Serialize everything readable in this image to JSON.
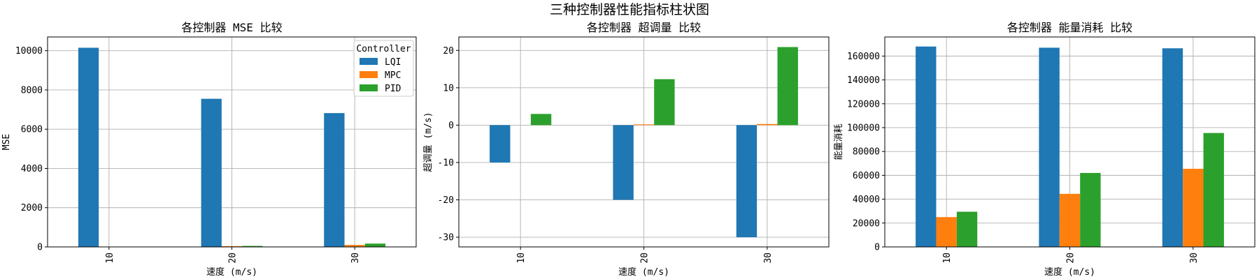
{
  "figure_title": "三种控制器性能指标柱状图",
  "colors": {
    "LQI": "#1f77b4",
    "MPC": "#ff7f0e",
    "PID": "#2ca02c"
  },
  "chart_data": [
    {
      "type": "bar",
      "title": "各控制器 MSE 比较",
      "xlabel": "速度 (m/s)",
      "ylabel": "MSE",
      "categories": [
        "10",
        "20",
        "30"
      ],
      "ylim": [
        0,
        10700
      ],
      "yticks": [
        0,
        2000,
        4000,
        6000,
        8000,
        10000
      ],
      "grid": true,
      "legend": {
        "title": "Controller",
        "placement": "upper right"
      },
      "series": [
        {
          "name": "LQI",
          "values": [
            10150,
            7550,
            6820
          ]
        },
        {
          "name": "MPC",
          "values": [
            10,
            40,
            100
          ]
        },
        {
          "name": "PID",
          "values": [
            15,
            50,
            170
          ]
        }
      ]
    },
    {
      "type": "bar",
      "title": "各控制器 超调量 比较",
      "xlabel": "速度 (m/s)",
      "ylabel": "超调量 (m/s)",
      "categories": [
        "10",
        "20",
        "30"
      ],
      "ylim": [
        -32.6,
        23.6
      ],
      "yticks": [
        -30,
        -20,
        -10,
        0,
        10,
        20
      ],
      "grid": true,
      "series": [
        {
          "name": "LQI",
          "values": [
            -10,
            -20,
            -30
          ]
        },
        {
          "name": "MPC",
          "values": [
            0,
            0.2,
            0.3
          ]
        },
        {
          "name": "PID",
          "values": [
            3,
            12.3,
            20.9
          ]
        }
      ]
    },
    {
      "type": "bar",
      "title": "各控制器 能量消耗 比较",
      "xlabel": "速度 (m/s)",
      "ylabel": "能量消耗",
      "categories": [
        "10",
        "20",
        "30"
      ],
      "ylim": [
        0,
        176000
      ],
      "yticks": [
        0,
        20000,
        40000,
        60000,
        80000,
        100000,
        120000,
        140000,
        160000
      ],
      "grid": true,
      "series": [
        {
          "name": "LQI",
          "values": [
            168000,
            167000,
            166500
          ]
        },
        {
          "name": "MPC",
          "values": [
            25000,
            44500,
            65500
          ]
        },
        {
          "name": "PID",
          "values": [
            29500,
            62000,
            95500
          ]
        }
      ]
    }
  ]
}
